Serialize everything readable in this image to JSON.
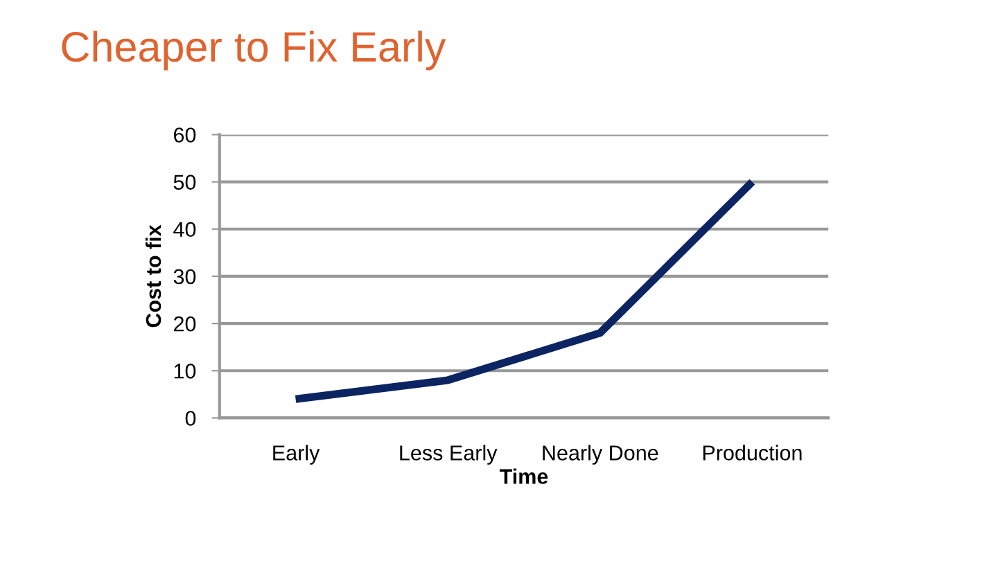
{
  "chart_data": {
    "type": "line",
    "title": "Cheaper to Fix Early",
    "xlabel": "Time",
    "ylabel": "Cost to fix",
    "categories": [
      "Early",
      "Less Early",
      "Nearly Done",
      "Production"
    ],
    "series": [
      {
        "color": "#0c2461",
        "values": [
          4,
          8,
          18,
          50
        ]
      }
    ],
    "ylim": [
      0,
      60
    ],
    "yticks": [
      0,
      10,
      20,
      30,
      40,
      50,
      60
    ],
    "grid": "y",
    "legend": false,
    "marker": "none",
    "line_style": "solid"
  }
}
